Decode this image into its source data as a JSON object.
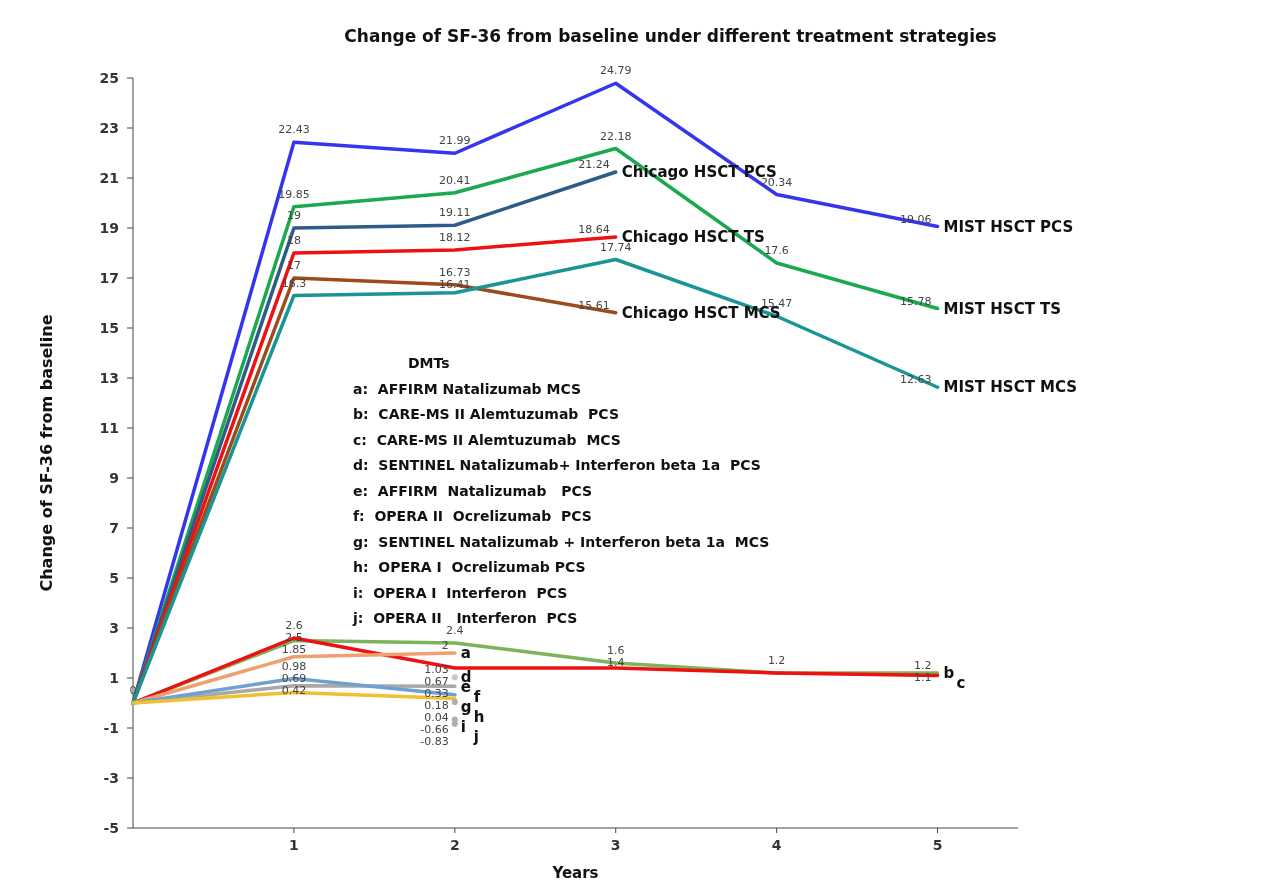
{
  "chart_data": {
    "type": "line",
    "title": "Change of SF-36 from baseline  under different treatment strategies",
    "xlabel": "Years",
    "ylabel": "Change of SF-36 from baseline",
    "x": [
      0,
      1,
      2,
      3,
      4,
      5
    ],
    "xlim": [
      0,
      5.5
    ],
    "xticks": [
      1,
      2,
      3,
      4,
      5
    ],
    "ylim": [
      -5,
      25
    ],
    "yticks": [
      -5,
      -3,
      -1,
      1,
      3,
      5,
      7,
      9,
      11,
      13,
      15,
      17,
      19,
      21,
      23,
      25
    ],
    "grid": false,
    "marker": "none",
    "line_style": "solid",
    "series": [
      {
        "name": "MIST  HSCT  PCS",
        "color": "#3535ee",
        "values": [
          0,
          22.43,
          21.99,
          24.79,
          20.34,
          19.06
        ],
        "value_labels": [
          "0",
          "22.43",
          "21.99",
          "24.79",
          "20.34",
          "19.06"
        ]
      },
      {
        "name": "MIST  HSCT  TS",
        "color": "#1ba84e",
        "values": [
          0,
          19.85,
          20.41,
          22.18,
          17.6,
          15.78
        ],
        "value_labels": [
          null,
          "19.85",
          "20.41",
          "22.18",
          "17.6",
          "15.78"
        ]
      },
      {
        "name": "Chicago HSCT PCS",
        "color": "#2e5b88",
        "x": [
          0,
          1,
          2,
          3
        ],
        "values": [
          0,
          19,
          19.11,
          21.24
        ],
        "value_labels": [
          null,
          "19",
          "19.11",
          "21.24"
        ]
      },
      {
        "name": "Chicago HSCT TS",
        "color": "#ee1111",
        "x": [
          0,
          1,
          2,
          3
        ],
        "values": [
          0,
          18,
          18.12,
          18.64
        ],
        "value_labels": [
          null,
          "18",
          "18.12",
          "18.64"
        ]
      },
      {
        "name": "Chicago HSCT MCS",
        "color": "#9c4b1c",
        "x": [
          0,
          1,
          2,
          3
        ],
        "values": [
          0,
          17,
          16.73,
          15.61
        ],
        "value_labels": [
          null,
          "17",
          "16.73",
          "15.61"
        ]
      },
      {
        "name": "MIST  HSCT  MCS",
        "color": "#1a9595",
        "values": [
          0,
          16.3,
          16.41,
          17.74,
          15.47,
          12.63
        ],
        "value_labels": [
          null,
          "16.3",
          "16.41",
          "17.74",
          "15.47",
          "12.63"
        ]
      },
      {
        "name": "b",
        "color": "#7db35a",
        "values": [
          0,
          2.5,
          2.4,
          1.6,
          1.2,
          1.2
        ],
        "value_labels": [
          null,
          "2.5",
          "2.4",
          "1.6",
          "1.2",
          "1.2"
        ]
      },
      {
        "name": "c",
        "color": "#ee1111",
        "values": [
          0,
          2.6,
          1.4,
          1.4,
          1.2,
          1.1
        ],
        "value_labels": [
          null,
          "2.6",
          null,
          "1.4",
          null,
          "1.1"
        ]
      },
      {
        "name": "a",
        "color": "#eea070",
        "x": [
          0,
          1,
          2
        ],
        "values": [
          0,
          1.85,
          2
        ],
        "value_labels": [
          null,
          "1.85",
          "2"
        ]
      },
      {
        "name": "d",
        "color": "#c8c8c8",
        "marker": "circle",
        "x": [
          2
        ],
        "values": [
          1.03
        ],
        "value_labels": [
          "1.03"
        ]
      },
      {
        "name": "e",
        "color": "#a8a8a8",
        "x": [
          0,
          1,
          2
        ],
        "values": [
          0,
          0.69,
          0.67
        ],
        "value_labels": [
          null,
          "0.69",
          "0.67"
        ]
      },
      {
        "name": "f",
        "color": "#6fa0d2",
        "x": [
          0,
          1,
          2
        ],
        "values": [
          0,
          0.98,
          0.33
        ],
        "value_labels": [
          null,
          "0.98",
          "0.33"
        ]
      },
      {
        "name": "g",
        "color": "#f0c030",
        "x": [
          0,
          1,
          2
        ],
        "values": [
          0,
          0.42,
          0.18
        ],
        "value_labels": [
          null,
          "0.42",
          "0.18"
        ]
      },
      {
        "name": "h",
        "color": "#b0b0b0",
        "marker": "circle",
        "x": [
          2
        ],
        "values": [
          0.04
        ],
        "value_labels": [
          "0.04"
        ]
      },
      {
        "name": "i",
        "color": "#b0b0b0",
        "marker": "circle",
        "x": [
          2
        ],
        "values": [
          -0.66
        ],
        "value_labels": [
          "-0.66"
        ]
      },
      {
        "name": "j",
        "color": "#b0b0b0",
        "marker": "circle",
        "x": [
          2
        ],
        "values": [
          -0.83
        ],
        "value_labels": [
          "-0.83"
        ]
      }
    ],
    "annotations": [
      "DMTs",
      "a:  AFFIRM Natalizumab MCS",
      "b:  CARE-MS II Alemtuzumab  PCS",
      "c:  CARE-MS II Alemtuzumab  MCS",
      "d:  SENTINEL Natalizumab+ Interferon beta 1a  PCS",
      "e:  AFFIRM  Natalizumab   PCS",
      "f:  OPERA II  Ocrelizumab  PCS",
      "g:  SENTINEL Natalizumab + Interferon beta 1a  MCS",
      "h:  OPERA I  Ocrelizumab PCS",
      "i:  OPERA I  Interferon  PCS",
      "j:  OPERA II   Interferon  PCS"
    ]
  }
}
